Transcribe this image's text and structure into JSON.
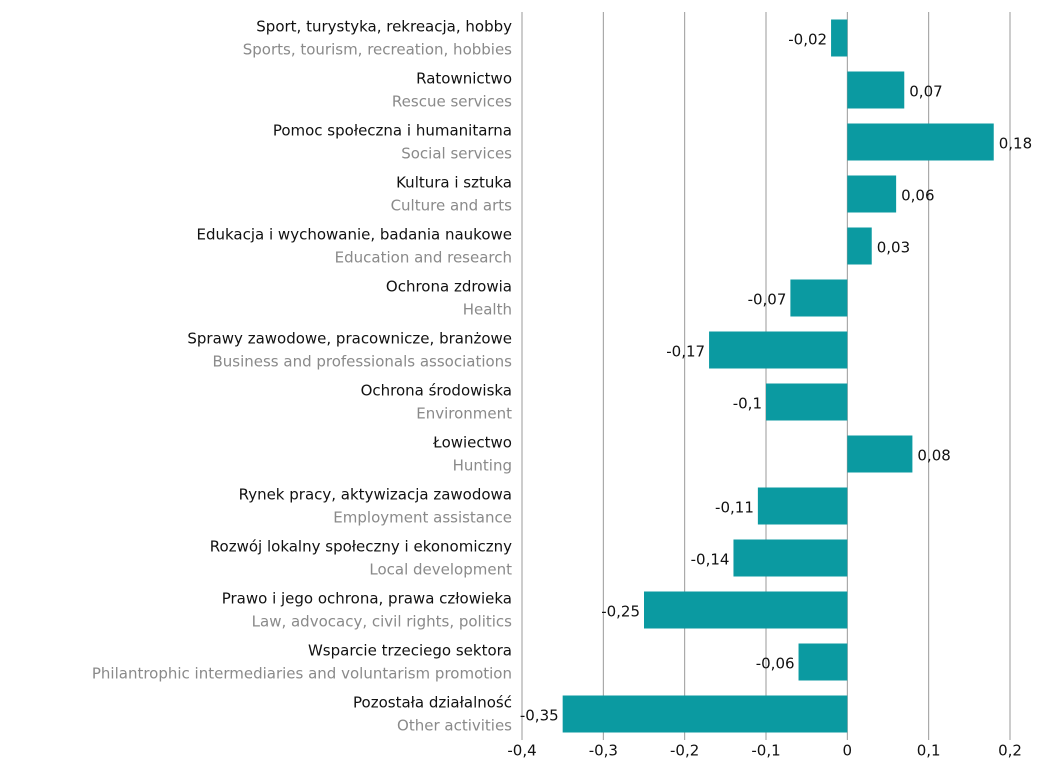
{
  "chart_data": {
    "type": "hbar",
    "categories": [
      "Sport, turystyka, rekreacja, hobby",
      "Ratownictwo",
      "Pomoc społeczna i humanitarna",
      "Kultura i sztuka",
      "Edukacja i wychowanie, badania naukowe",
      "Ochrona zdrowia",
      "Sprawy zawodowe, pracownicze, branżowe",
      "Ochrona środowiska",
      "Łowiectwo",
      "Rynek pracy, aktywizacja zawodowa",
      "Rozwój lokalny społeczny i ekonomiczny",
      "Prawo i jego ochrona, prawa człowieka",
      "Wsparcie trzeciego sektora",
      "Pozostała działalność"
    ],
    "categories_en": [
      "Sports, tourism, recreation, hobbies",
      "Rescue services",
      "Social services",
      "Culture and arts",
      "Education and research",
      "Health",
      "Business and professionals associations",
      "Environment",
      "Hunting",
      "Employment assistance",
      "Local development",
      "Law, advocacy, civil rights, politics",
      "Philantrophic intermediaries and voluntarism promotion",
      "Other activities"
    ],
    "values": [
      -0.02,
      0.07,
      0.18,
      0.06,
      0.03,
      -0.07,
      -0.17,
      -0.1,
      0.08,
      -0.11,
      -0.14,
      -0.25,
      -0.06,
      -0.35
    ],
    "value_labels": [
      "-0,02",
      "0,07",
      "0,18",
      "0,06",
      "0,03",
      "-0,07",
      "-0,17",
      "-0,1",
      "0,08",
      "-0,11",
      "-0,14",
      "-0,25",
      "-0,06",
      "-0,35"
    ],
    "color": "#0b9aa1",
    "xlim": [
      -0.4,
      0.2
    ],
    "xticks": [
      {
        "value": -0.4,
        "label": "-0,4"
      },
      {
        "value": -0.3,
        "label": "-0,3"
      },
      {
        "value": -0.2,
        "label": "-0,2"
      },
      {
        "value": -0.1,
        "label": "-0,1"
      },
      0,
      {
        "value": 0.1,
        "label": "0,1"
      },
      {
        "value": 0.2,
        "label": "0,2"
      }
    ],
    "grid": true
  }
}
